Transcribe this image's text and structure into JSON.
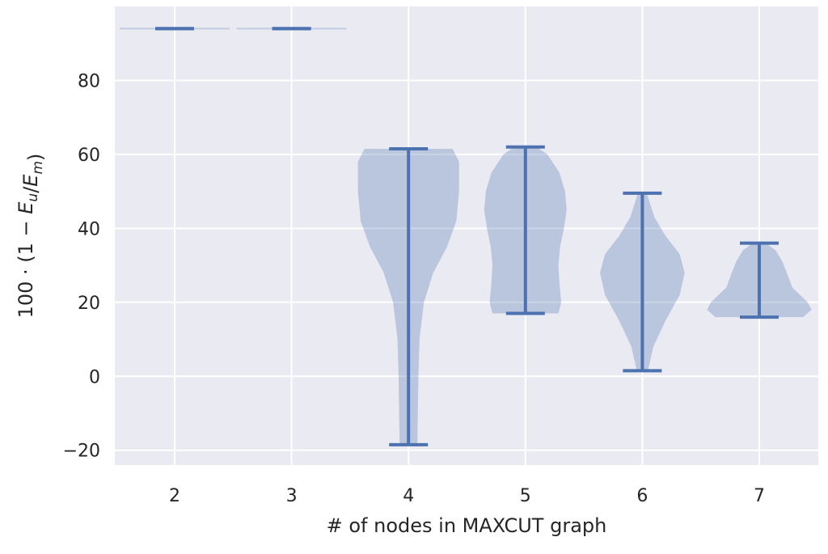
{
  "chart_data": {
    "type": "violin",
    "xlabel": "# of nodes in MAXCUT graph",
    "ylabel": "100 · (1 − E_u/E_m)",
    "categories": [
      "2",
      "3",
      "4",
      "5",
      "6",
      "7"
    ],
    "yticks": [
      -20,
      0,
      20,
      40,
      60,
      80
    ],
    "ylim": [
      -24,
      100
    ],
    "grid": true,
    "colors": {
      "background": "#EAEAF2",
      "grid": "#FFFFFF",
      "violin_fill": "#4C72B0",
      "violin_line": "#4C72B0"
    },
    "series": [
      {
        "category": "2",
        "min": 94,
        "max": 94,
        "density": [
          [
            94,
            1.0
          ]
        ]
      },
      {
        "category": "3",
        "min": 94,
        "max": 94,
        "density": [
          [
            94,
            1.0
          ]
        ]
      },
      {
        "category": "4",
        "min": -18.5,
        "max": 61.5,
        "density": [
          [
            -18.5,
            0.16
          ],
          [
            -10,
            0.17
          ],
          [
            0,
            0.18
          ],
          [
            10,
            0.2
          ],
          [
            20,
            0.28
          ],
          [
            28,
            0.45
          ],
          [
            35,
            0.7
          ],
          [
            42,
            0.87
          ],
          [
            50,
            0.92
          ],
          [
            58,
            0.92
          ],
          [
            61.5,
            0.8
          ]
        ]
      },
      {
        "category": "5",
        "min": 17,
        "max": 62,
        "density": [
          [
            17,
            0.6
          ],
          [
            20,
            0.65
          ],
          [
            25,
            0.62
          ],
          [
            30,
            0.6
          ],
          [
            35,
            0.63
          ],
          [
            40,
            0.7
          ],
          [
            45,
            0.75
          ],
          [
            50,
            0.72
          ],
          [
            55,
            0.62
          ],
          [
            60,
            0.4
          ],
          [
            62,
            0.2
          ]
        ]
      },
      {
        "category": "6",
        "min": 1.5,
        "max": 49.5,
        "density": [
          [
            1.5,
            0.1
          ],
          [
            8,
            0.2
          ],
          [
            15,
            0.42
          ],
          [
            22,
            0.68
          ],
          [
            28,
            0.77
          ],
          [
            33,
            0.68
          ],
          [
            38,
            0.42
          ],
          [
            43,
            0.22
          ],
          [
            49.5,
            0.08
          ]
        ]
      },
      {
        "category": "7",
        "min": 16,
        "max": 36,
        "density": [
          [
            16,
            0.8
          ],
          [
            18,
            0.95
          ],
          [
            20,
            0.88
          ],
          [
            24,
            0.6
          ],
          [
            28,
            0.5
          ],
          [
            31,
            0.42
          ],
          [
            34,
            0.3
          ],
          [
            36,
            0.12
          ]
        ]
      }
    ]
  }
}
